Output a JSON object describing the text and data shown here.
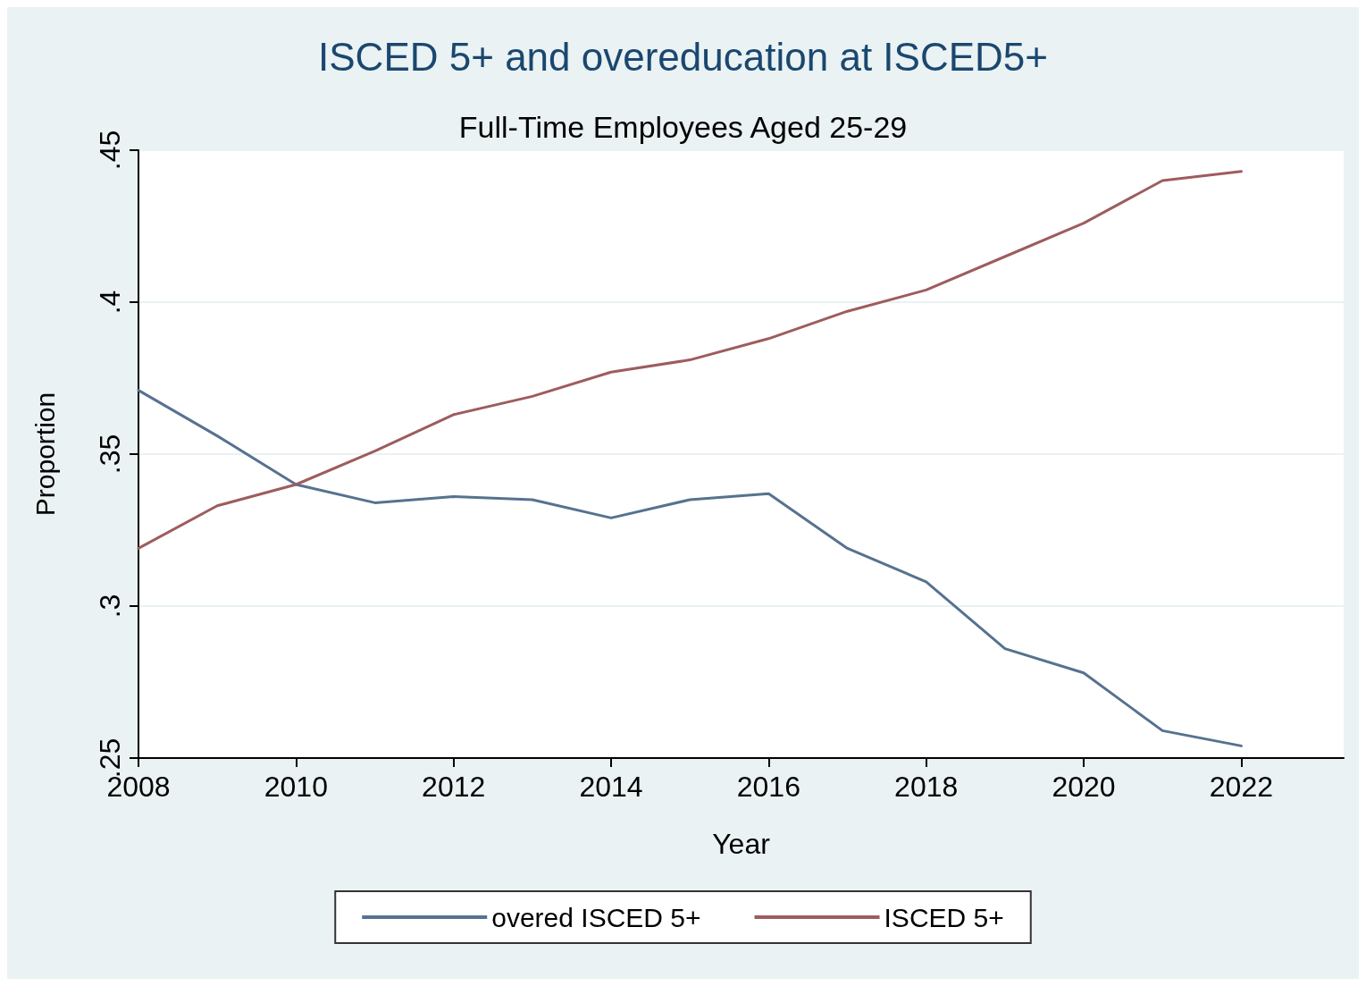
{
  "chart_data": {
    "type": "line",
    "title": "ISCED 5+ and overeducation at ISCED5+",
    "subtitle": "Full-Time Employees Aged 25-29",
    "xlabel": "Year",
    "ylabel": "Proportion",
    "x": [
      2008,
      2009,
      2010,
      2011,
      2012,
      2013,
      2014,
      2015,
      2016,
      2017,
      2018,
      2019,
      2020,
      2021,
      2022
    ],
    "series": [
      {
        "name": "overed ISCED 5+",
        "color": "#56728f",
        "values": [
          0.371,
          0.356,
          0.34,
          0.334,
          0.336,
          0.335,
          0.329,
          0.335,
          0.337,
          0.319,
          0.308,
          0.286,
          0.278,
          0.259,
          0.254
        ]
      },
      {
        "name": "ISCED 5+",
        "color": "#9e5c5e",
        "values": [
          0.319,
          0.333,
          0.34,
          0.351,
          0.363,
          0.369,
          0.377,
          0.381,
          0.388,
          0.397,
          0.404,
          0.415,
          0.426,
          0.44,
          0.443
        ]
      }
    ],
    "xlim": [
      2008,
      2023.3
    ],
    "xticks": [
      2008,
      2010,
      2012,
      2014,
      2016,
      2018,
      2020,
      2022
    ],
    "ylim": [
      0.25,
      0.45
    ],
    "yticks": [
      {
        "value": 0.25,
        "label": ".25"
      },
      {
        "value": 0.3,
        "label": ".3"
      },
      {
        "value": 0.35,
        "label": ".35"
      },
      {
        "value": 0.4,
        "label": ".4"
      },
      {
        "value": 0.45,
        "label": ".45"
      }
    ],
    "grid": "y",
    "legend": "bottom",
    "marker": "none",
    "line_style": "solid"
  }
}
